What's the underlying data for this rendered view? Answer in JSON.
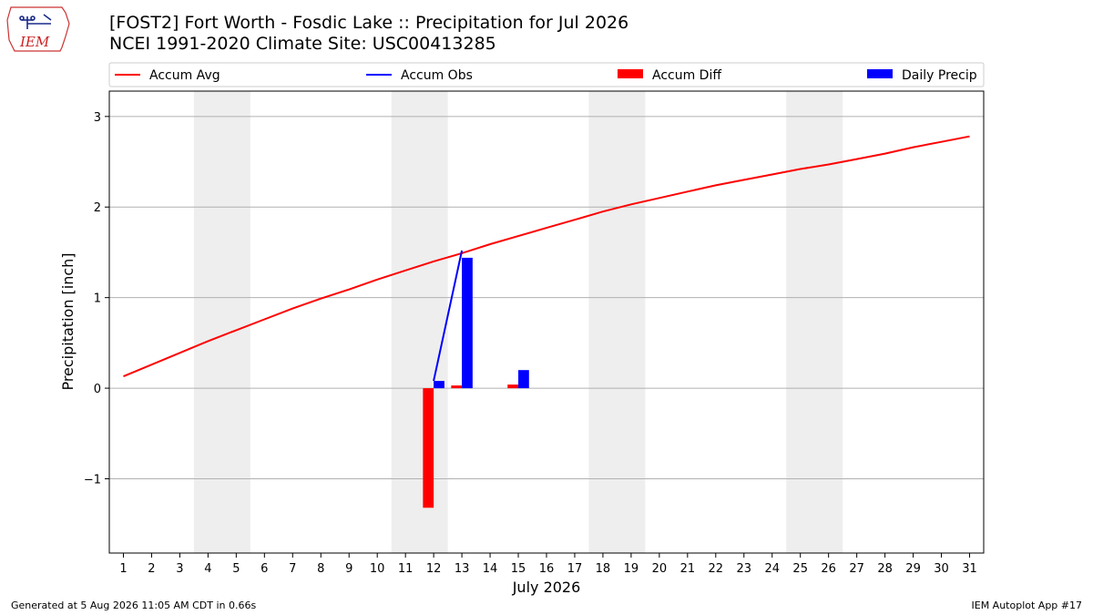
{
  "header": {
    "title_line1": "[FOST2] Fort Worth - Fosdic Lake :: Precipitation for Jul 2026",
    "title_line2": "NCEI 1991-2020 Climate Site: USC00413285",
    "logo_text": "IEM"
  },
  "footer": {
    "generated": "Generated at 5 Aug 2026 11:05 AM CDT in 0.66s",
    "app": "IEM Autoplot App #17"
  },
  "colors": {
    "avg": "#ff0000",
    "obs": "#0000ff",
    "diff": "#ff0000",
    "precip": "#0000ff",
    "weekend_shade": "#eeeeee",
    "grid": "#b0b0b0"
  },
  "chart_data": {
    "type": "line",
    "title": "[FOST2] Fort Worth - Fosdic Lake :: Precipitation for Jul 2026",
    "subtitle": "NCEI 1991-2020 Climate Site: USC00413285",
    "xlabel": "July 2026",
    "ylabel": "Precipitation [inch]",
    "x": [
      1,
      2,
      3,
      4,
      5,
      6,
      7,
      8,
      9,
      10,
      11,
      12,
      13,
      14,
      15,
      16,
      17,
      18,
      19,
      20,
      21,
      22,
      23,
      24,
      25,
      26,
      27,
      28,
      29,
      30,
      31
    ],
    "x_ticks": [
      "1",
      "2",
      "3",
      "4",
      "5",
      "6",
      "7",
      "8",
      "9",
      "10",
      "11",
      "12",
      "13",
      "14",
      "15",
      "16",
      "17",
      "18",
      "19",
      "20",
      "21",
      "22",
      "23",
      "24",
      "25",
      "26",
      "27",
      "28",
      "29",
      "30",
      "31"
    ],
    "y_ticks": [
      -1,
      0,
      1,
      2,
      3
    ],
    "y_tick_labels": [
      "−1",
      "0",
      "1",
      "2",
      "3"
    ],
    "xlim": [
      0.5,
      31.5
    ],
    "ylim": [
      -1.82,
      3.28
    ],
    "grid": "horizontal",
    "legend": {
      "placement": "top",
      "entries": [
        "Accum Avg",
        "Accum Obs",
        "Accum Diff",
        "Daily Precip"
      ]
    },
    "weekend_shading": [
      [
        3.5,
        5.5
      ],
      [
        10.5,
        12.5
      ],
      [
        17.5,
        19.5
      ],
      [
        24.5,
        26.5
      ]
    ],
    "series": [
      {
        "name": "Accum Avg",
        "kind": "line",
        "x": [
          1,
          2,
          3,
          4,
          5,
          6,
          7,
          8,
          9,
          10,
          11,
          12,
          13,
          14,
          15,
          16,
          17,
          18,
          19,
          20,
          21,
          22,
          23,
          24,
          25,
          26,
          27,
          28,
          29,
          30,
          31
        ],
        "values": [
          0.13,
          0.26,
          0.39,
          0.52,
          0.64,
          0.76,
          0.88,
          0.99,
          1.09,
          1.2,
          1.3,
          1.4,
          1.49,
          1.59,
          1.68,
          1.77,
          1.86,
          1.95,
          2.03,
          2.1,
          2.17,
          2.24,
          2.3,
          2.36,
          2.42,
          2.47,
          2.53,
          2.59,
          2.66,
          2.72,
          2.78
        ]
      },
      {
        "name": "Accum Obs",
        "kind": "line",
        "x": [
          12,
          13
        ],
        "values": [
          0.08,
          1.52
        ]
      },
      {
        "name": "Accum Diff",
        "kind": "bar",
        "x": [
          12,
          13,
          15
        ],
        "values": [
          -1.32,
          0.03,
          0.04
        ]
      },
      {
        "name": "Daily Precip",
        "kind": "bar",
        "x": [
          12,
          13,
          15
        ],
        "values": [
          0.08,
          1.44,
          0.2
        ]
      }
    ]
  }
}
